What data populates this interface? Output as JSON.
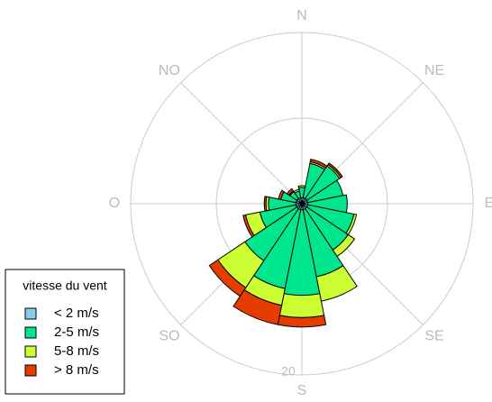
{
  "chart_data": {
    "type": "windrose",
    "compass_labels": [
      "N",
      "NE",
      "E",
      "SE",
      "S",
      "SO",
      "O",
      "NO"
    ],
    "rlim": [
      0,
      20
    ],
    "rgrid": [
      10,
      20
    ],
    "rlabel": 20,
    "legend_title": "vitesse du vent",
    "series": [
      {
        "name": "< 2 m/s",
        "color": "#87ceeb",
        "values": [
          0.7,
          0.7,
          0.7,
          0.7,
          0.7,
          0.7,
          0.7,
          0.7,
          0.7,
          0.7,
          0.7,
          0.7,
          0.7,
          0.7,
          0.7,
          0.7
        ]
      },
      {
        "name": "2-5 m/s",
        "color": "#00e68c",
        "values": [
          1.2,
          4.1,
          4.6,
          4.2,
          4.6,
          5.5,
          5.8,
          8.0,
          10.0,
          9.4,
          7.3,
          4.3,
          3.2,
          1.8,
          1.0,
          0.8
        ]
      },
      {
        "name": "5-8 m/s",
        "color": "#ccff33",
        "values": [
          0.2,
          0.2,
          0.2,
          0,
          0,
          0.3,
          0.9,
          2.9,
          2.6,
          2.0,
          3.8,
          1.7,
          0.3,
          0,
          0.1,
          0.2
        ]
      },
      {
        "name": "> 8 m/s",
        "color": "#e63c00",
        "values": [
          0,
          0.3,
          0.2,
          0,
          0,
          0,
          0,
          0,
          1.1,
          2.3,
          1.2,
          0.3,
          0.2,
          0.3,
          0.3,
          0
        ]
      }
    ]
  }
}
